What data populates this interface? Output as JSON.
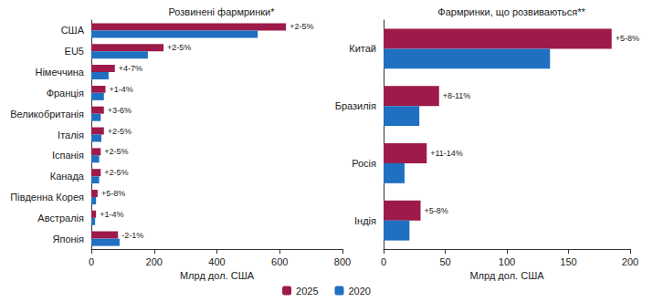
{
  "chart_data": [
    {
      "type": "bar",
      "title": "Розвинені фармринки*",
      "orientation": "horizontal",
      "x_label": "Млрд дол. США",
      "categories": [
        "США",
        "EU5",
        "Німеччина",
        "Франція",
        "Великобританія",
        "Італія",
        "Іспанія",
        "Канада",
        "Південна Корея",
        "Австралія",
        "Японія"
      ],
      "series": [
        {
          "name": "2025",
          "color": "#9e1a4b",
          "values": [
            620,
            230,
            75,
            45,
            40,
            40,
            30,
            30,
            20,
            15,
            85
          ]
        },
        {
          "name": "2020",
          "color": "#1f70c1",
          "values": [
            530,
            180,
            55,
            40,
            30,
            32,
            25,
            25,
            15,
            12,
            90
          ]
        }
      ],
      "annotations": [
        "+2-5%",
        "+2-5%",
        "+4-7%",
        "+1-4%",
        "+3-6%",
        "+2-5%",
        "+2-5%",
        "+2-5%",
        "+5-8%",
        "+1-4%",
        "-2-1%"
      ],
      "xlim": [
        0,
        800
      ],
      "xticks": [
        0,
        200,
        400,
        600,
        800
      ],
      "grid": false,
      "legend": "bottom"
    },
    {
      "type": "bar",
      "title": "Фармринки, що розвиваються**",
      "orientation": "horizontal",
      "x_label": "Млрд дол. США",
      "categories": [
        "Китай",
        "Бразилія",
        "Росія",
        "Індія"
      ],
      "series": [
        {
          "name": "2025",
          "color": "#9e1a4b",
          "values": [
            185,
            45,
            35,
            30
          ]
        },
        {
          "name": "2020",
          "color": "#1f70c1",
          "values": [
            135,
            29,
            17,
            21
          ]
        }
      ],
      "annotations": [
        "+5-8%",
        "+8-11%",
        "+11-14%",
        "+5-8%"
      ],
      "xlim": [
        0,
        200
      ],
      "xticks": [
        0,
        50,
        100,
        150,
        200
      ],
      "grid": false,
      "legend": "bottom"
    }
  ]
}
